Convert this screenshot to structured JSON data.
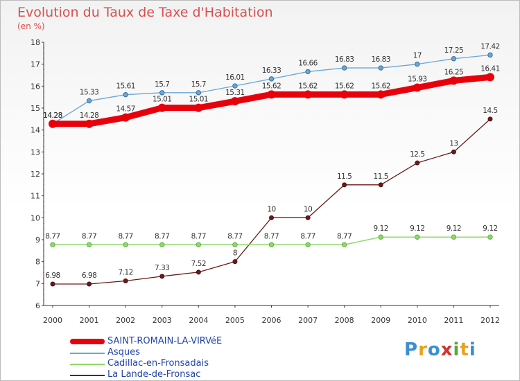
{
  "header": {
    "title": "Evolution du Taux de Taxe d'Habitation",
    "subtitle": "(en %)"
  },
  "logo": {
    "text": "Proxiti",
    "letters": [
      {
        "ch": "P",
        "color": "#3a8fd4"
      },
      {
        "ch": "r",
        "color": "#e9a21b"
      },
      {
        "ch": "o",
        "color": "#3a8fd4"
      },
      {
        "ch": "x",
        "color": "#d93030"
      },
      {
        "ch": "i",
        "color": "#5aa83c"
      },
      {
        "ch": "t",
        "color": "#e9a21b"
      },
      {
        "ch": "i",
        "color": "#3a8fd4"
      }
    ]
  },
  "chart_data": {
    "type": "line",
    "x": [
      "2000",
      "2001",
      "2002",
      "2003",
      "2004",
      "2005",
      "2006",
      "2007",
      "2008",
      "2009",
      "2010",
      "2011",
      "2012"
    ],
    "ylim": [
      6,
      18
    ],
    "yticks": [
      "6",
      "7",
      "8",
      "9",
      "10",
      "11",
      "12",
      "13",
      "14",
      "15",
      "16",
      "17",
      "18"
    ],
    "grid": false,
    "legend_position": "bottom-left",
    "series": [
      {
        "name": "SAINT-ROMAIN-LA-VIRVéE",
        "color": "#e8000b",
        "values": [
          14.28,
          14.28,
          14.57,
          15.01,
          15.01,
          15.31,
          15.62,
          15.62,
          15.62,
          15.62,
          15.93,
          16.25,
          16.41
        ],
        "labels": [
          "14.28",
          "14.28",
          "14.57",
          "15.01",
          "15.01",
          "15.31",
          "15.62",
          "15.62",
          "15.62",
          "15.62",
          "15.93",
          "16.25",
          "16.41"
        ]
      },
      {
        "name": "Asques",
        "color": "#6aa6d6",
        "values": [
          14.28,
          15.33,
          15.61,
          15.7,
          15.7,
          16.01,
          16.33,
          16.66,
          16.83,
          16.83,
          17,
          17.25,
          17.42
        ],
        "labels": [
          "14.28",
          "15.33",
          "15.61",
          "15.7",
          "15.7",
          "16.01",
          "16.33",
          "16.66",
          "16.83",
          "16.83",
          "17",
          "17.25",
          "17.42"
        ]
      },
      {
        "name": "Cadillac-en-Fronsadais",
        "color": "#8fd86a",
        "values": [
          8.77,
          8.77,
          8.77,
          8.77,
          8.77,
          8.77,
          8.77,
          8.77,
          8.77,
          9.12,
          9.12,
          9.12,
          9.12
        ],
        "labels": [
          "8.77",
          "8.77",
          "8.77",
          "8.77",
          "8.77",
          "8.77",
          "8.77",
          "8.77",
          "8.77",
          "9.12",
          "9.12",
          "9.12",
          "9.12"
        ]
      },
      {
        "name": "La Lande-de-Fronsac",
        "color": "#6b1a1a",
        "values": [
          6.98,
          6.98,
          7.12,
          7.33,
          7.52,
          8,
          10,
          10,
          11.5,
          11.5,
          12.5,
          13,
          14.5
        ],
        "labels": [
          "6.98",
          "6.98",
          "7.12",
          "7.33",
          "7.52",
          "8",
          "10",
          "10",
          "11.5",
          "11.5",
          "12.5",
          "13",
          "14.5"
        ]
      }
    ]
  }
}
